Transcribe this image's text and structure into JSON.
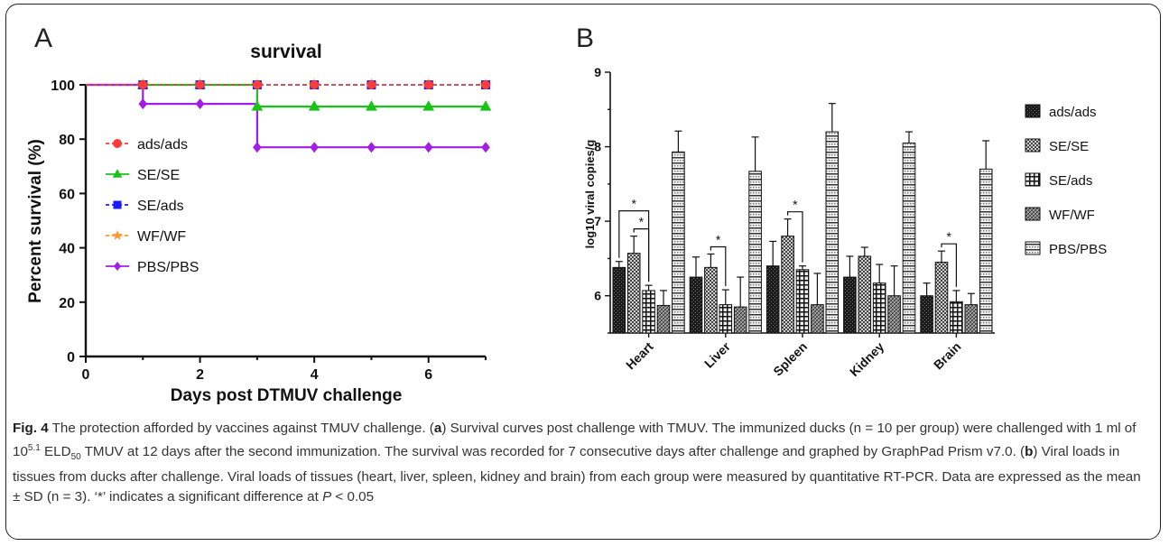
{
  "panelA": {
    "letter": "A",
    "title": "survival",
    "xlabel": "Days post DTMUV challenge",
    "ylabel": "Percent survival (%)"
  },
  "panelB": {
    "letter": "B",
    "ylabel": "log10 viral copies/g",
    "significance_mark": "*"
  },
  "caption": {
    "fig_label": "Fig. 4",
    "part1": " The protection afforded by vaccines against TMUV challenge. (",
    "a": "a",
    "part2": ") Survival curves post challenge with TMUV. The immunized ducks (n = 10 per group) were challenged with 1 ml of 10",
    "sup": "5.1",
    "part3": " ELD",
    "sub": "50",
    "part4": " TMUV at 12 days after the second immunization. The survival was recorded for 7 consecutive days after challenge and graphed by GraphPad Prism v7.0. (",
    "b": "b",
    "part5": ") Viral loads in tissues from ducks after challenge. Viral loads of tissues (heart, liver, spleen, kidney and brain) from each group were measured by quantitative RT-PCR. Data are expressed as the mean ± SD (n = 3). ‘*’ indicates a significant difference at ",
    "p": "P",
    "part6": " < 0.05"
  },
  "chart_data": [
    {
      "type": "line",
      "title": "survival",
      "xlabel": "Days post DTMUV challenge",
      "ylabel": "Percent survival (%)",
      "xlim": [
        0,
        7
      ],
      "ylim": [
        0,
        100
      ],
      "xticks": [
        0,
        2,
        4,
        6
      ],
      "yticks": [
        0,
        20,
        40,
        60,
        80,
        100
      ],
      "legend_position": "left-center",
      "series": [
        {
          "name": "ads/ads",
          "color": "#ff3b3b",
          "marker": "circle",
          "dash": true,
          "points": [
            [
              0,
              100
            ],
            [
              1,
              100
            ],
            [
              2,
              100
            ],
            [
              3,
              100
            ],
            [
              4,
              100
            ],
            [
              5,
              100
            ],
            [
              6,
              100
            ],
            [
              7,
              100
            ]
          ]
        },
        {
          "name": "SE/SE",
          "color": "#19c419",
          "marker": "triangle",
          "dash": false,
          "points": [
            [
              0,
              100
            ],
            [
              1,
              100
            ],
            [
              2,
              100
            ],
            [
              3,
              100
            ],
            [
              3,
              92
            ],
            [
              4,
              92
            ],
            [
              5,
              92
            ],
            [
              6,
              92
            ],
            [
              7,
              92
            ]
          ]
        },
        {
          "name": "SE/ads",
          "color": "#1a1aff",
          "marker": "square",
          "dash": true,
          "points": [
            [
              0,
              100
            ],
            [
              1,
              100
            ],
            [
              2,
              100
            ],
            [
              3,
              100
            ],
            [
              4,
              100
            ],
            [
              5,
              100
            ],
            [
              6,
              100
            ],
            [
              7,
              100
            ]
          ]
        },
        {
          "name": "WF/WF",
          "color": "#ff9933",
          "marker": "star",
          "dash": true,
          "points": [
            [
              0,
              100
            ],
            [
              1,
              100
            ],
            [
              2,
              100
            ],
            [
              3,
              100
            ],
            [
              4,
              100
            ],
            [
              5,
              100
            ],
            [
              6,
              100
            ],
            [
              7,
              100
            ]
          ]
        },
        {
          "name": "PBS/PBS",
          "color": "#a21ee6",
          "marker": "diamond",
          "dash": false,
          "points": [
            [
              0,
              100
            ],
            [
              1,
              100
            ],
            [
              1,
              93
            ],
            [
              2,
              93
            ],
            [
              3,
              93
            ],
            [
              3,
              77
            ],
            [
              4,
              77
            ],
            [
              5,
              77
            ],
            [
              6,
              77
            ],
            [
              7,
              77
            ]
          ]
        }
      ]
    },
    {
      "type": "bar",
      "ylabel": "log10 viral copies/g",
      "ylim": [
        5.5,
        9
      ],
      "yticks": [
        6,
        7,
        8,
        9
      ],
      "categories": [
        "Heart",
        "Liver",
        "Spleen",
        "Kidney",
        "Brain"
      ],
      "legend_position": "right",
      "series": [
        {
          "name": "ads/ads",
          "values": [
            6.38,
            6.25,
            6.4,
            6.25,
            6.0
          ],
          "sd": [
            0.08,
            0.27,
            0.33,
            0.28,
            0.17
          ]
        },
        {
          "name": "SE/SE",
          "values": [
            6.57,
            6.38,
            6.8,
            6.53,
            6.45
          ],
          "sd": [
            0.23,
            0.18,
            0.23,
            0.12,
            0.15
          ]
        },
        {
          "name": "SE/ads",
          "values": [
            6.07,
            5.88,
            6.35,
            6.17,
            5.92
          ],
          "sd": [
            0.07,
            0.2,
            0.05,
            0.25,
            0.15
          ]
        },
        {
          "name": "WF/WF",
          "values": [
            5.87,
            5.85,
            5.88,
            6.0,
            5.88
          ],
          "sd": [
            0.2,
            0.4,
            0.42,
            0.4,
            0.15
          ]
        },
        {
          "name": "PBS/PBS",
          "values": [
            7.93,
            7.67,
            8.2,
            8.05,
            7.7
          ],
          "sd": [
            0.28,
            0.46,
            0.38,
            0.15,
            0.38
          ]
        }
      ],
      "significance": [
        {
          "category": "Heart",
          "from": 0,
          "to": 2,
          "level": 2,
          "label": "*"
        },
        {
          "category": "Heart",
          "from": 1,
          "to": 2,
          "level": 1,
          "label": "*"
        },
        {
          "category": "Liver",
          "from": 1,
          "to": 2,
          "level": 1,
          "label": "*"
        },
        {
          "category": "Spleen",
          "from": 1,
          "to": 2,
          "level": 1,
          "label": "*"
        },
        {
          "category": "Brain",
          "from": 1,
          "to": 2,
          "level": 1,
          "label": "*"
        }
      ]
    }
  ]
}
